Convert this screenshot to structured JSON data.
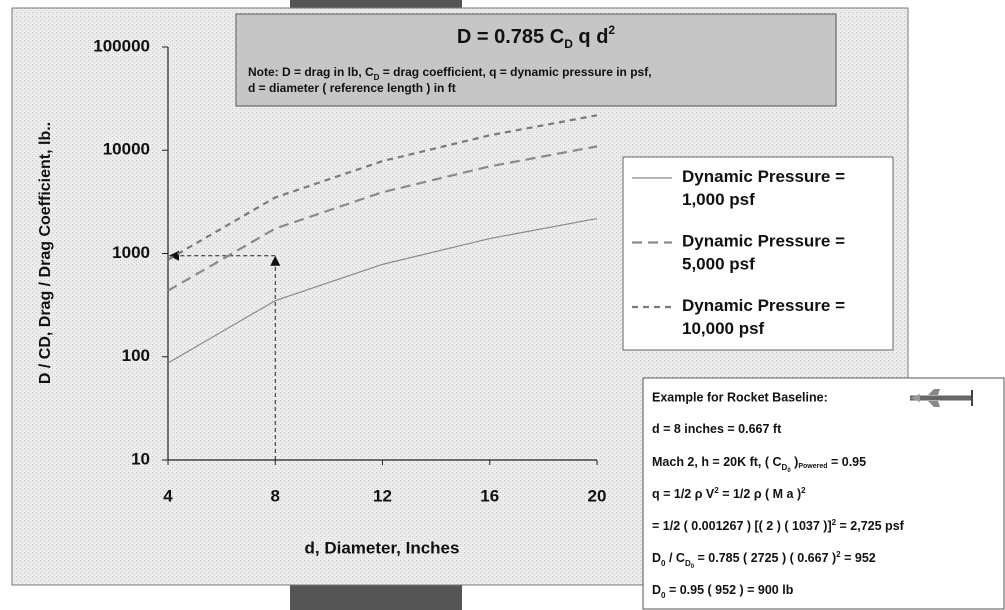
{
  "chart_data": {
    "type": "line",
    "x_label": "d, Diameter, Inches",
    "y_label": "D / CD, Drag / Drag Coefficient, lb..",
    "formula": [
      "D = 0.785 C",
      "D",
      " q d",
      "2"
    ],
    "note": [
      [
        "Note: D = drag in lb, C",
        "D",
        " = drag coefficient, q = dynamic pressure in psf,"
      ],
      [
        "d = diameter ( reference length ) in ft"
      ]
    ],
    "x": [
      4,
      8,
      12,
      16,
      20
    ],
    "xlim": [
      4,
      20
    ],
    "xticks": [
      4,
      8,
      12,
      16,
      20
    ],
    "ylim": [
      10,
      100000
    ],
    "yticks": [
      10,
      100,
      1000,
      10000,
      100000
    ],
    "y_scale": "log",
    "series": [
      {
        "name": "Dynamic Pressure = 1,000 psf",
        "color": "#8a8a8a",
        "dash": "none",
        "values": [
          87,
          349,
          785,
          1396,
          2181
        ]
      },
      {
        "name": "Dynamic Pressure = 5,000 psf",
        "color": "#8a8a8a",
        "dash": "10 6",
        "values": [
          436,
          1744,
          3925,
          6978,
          10903
        ]
      },
      {
        "name": "Dynamic Pressure = 10,000 psf",
        "color": "#7a7a7a",
        "dash": "6 5",
        "values": [
          872,
          3489,
          7850,
          13956,
          21806
        ]
      }
    ],
    "example_point": {
      "x": 8,
      "y": 952
    },
    "example": {
      "title": "Example for Rocket Baseline:",
      "lines": [
        [
          "d = 8 inches = 0.667 ft"
        ],
        [
          "Mach 2, h = 20K ft, ( C",
          "D",
          "0",
          " )",
          "Powered",
          " = 0.95"
        ],
        [
          "q = 1/2 ρ V",
          "2",
          " = 1/2 ρ ( M a )",
          "2"
        ],
        [
          "= 1/2 ( 0.001267 ) [( 2 ) ( 1037 )]",
          "2",
          " =  2,725 psf"
        ],
        [
          "D",
          "0",
          " / C",
          "D",
          "0",
          " = 0.785 ( 2725 ) ( 0.667 )",
          "2",
          " = 952"
        ],
        [
          "D",
          "0",
          " = 0.95 ( 952 ) = 900 lb"
        ]
      ]
    }
  }
}
